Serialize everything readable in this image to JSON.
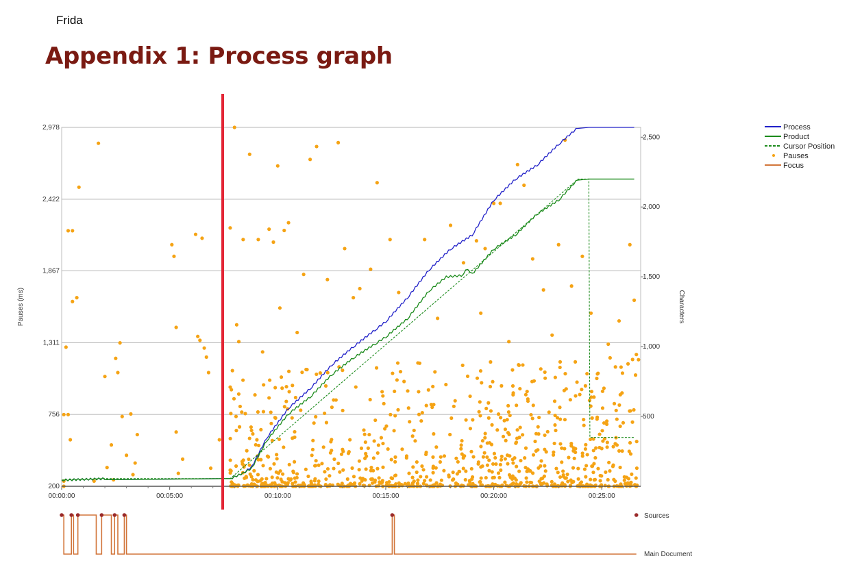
{
  "header": {
    "author": "Frida",
    "title": "Appendix 1: Process graph"
  },
  "colors": {
    "process": "#2020c8",
    "product": "#1a8a1a",
    "cursor": "#1a8a1a",
    "pauses": "#f5a314",
    "focus": "#d2753a",
    "focus_dot": "#9a2a2a",
    "marker": "#e32636",
    "title": "#7a1a12"
  },
  "chart_data": {
    "type": "line",
    "title": "",
    "ylabel_left": "Pauses (ms)",
    "ylabel_right": "Characters",
    "xlabel": "",
    "y_left_ticks": [
      "200",
      "756",
      "1,311",
      "1,867",
      "2,422",
      "2,978"
    ],
    "y_left_range": [
      200,
      2978
    ],
    "y_right_ticks": [
      "500",
      "1,000",
      "1,500",
      "2,000",
      "2,500"
    ],
    "y_right_range": [
      0,
      2570
    ],
    "x_ticks": [
      "00:00:00",
      "00:05:00",
      "00:10:00",
      "00:15:00",
      "00:20:00",
      "00:25:00"
    ],
    "x_range_min": [
      0,
      26.5
    ],
    "grid": true,
    "legend_position": "right",
    "legend": [
      "Process",
      "Product",
      "Cursor Position",
      "Pauses",
      "Focus"
    ],
    "series": [
      {
        "name": "Process",
        "style": "line",
        "x": [
          0,
          2,
          7.8,
          8.4,
          8.8,
          9.5,
          10.5,
          11.5,
          12.5,
          13.5,
          14.5,
          15,
          16,
          17,
          18,
          19,
          20,
          21,
          22,
          23,
          23.9,
          24.4,
          26.5
        ],
        "y": [
          45,
          55,
          55,
          95,
          140,
          350,
          560,
          700,
          870,
          1000,
          1120,
          1180,
          1350,
          1550,
          1700,
          1800,
          2050,
          2200,
          2300,
          2450,
          2570,
          2570,
          2570
        ]
      },
      {
        "name": "Product",
        "style": "line",
        "x": [
          0,
          2,
          7.8,
          8.4,
          8.8,
          9.5,
          10.5,
          11.5,
          12.5,
          13.5,
          14.5,
          15,
          16,
          17,
          17.8,
          18.5,
          18.8,
          19,
          20,
          21,
          22,
          23,
          23.9,
          24.4,
          26.5
        ],
        "y": [
          45,
          55,
          55,
          95,
          130,
          330,
          520,
          640,
          800,
          920,
          1020,
          1070,
          1200,
          1400,
          1500,
          1510,
          1560,
          1520,
          1700,
          1800,
          1950,
          2050,
          2200,
          2200,
          2200
        ]
      },
      {
        "name": "Cursor Position",
        "style": "dashed",
        "x": [
          0,
          2,
          7.8,
          23.9,
          24.4,
          24.45,
          26.5
        ],
        "y": [
          45,
          55,
          55,
          2200,
          2200,
          350,
          350
        ]
      }
    ],
    "pauses_ms": [
      [
        0.1,
        200
      ],
      [
        0.1,
        240
      ],
      [
        0.1,
        755
      ],
      [
        0.3,
        755
      ],
      [
        0.3,
        2178
      ],
      [
        0.5,
        2178
      ],
      [
        0.2,
        1277
      ],
      [
        0.4,
        560
      ],
      [
        0.5,
        1630
      ],
      [
        0.7,
        1660
      ],
      [
        0.8,
        2515
      ],
      [
        1.5,
        240
      ],
      [
        1.7,
        2855
      ],
      [
        2,
        1050
      ],
      [
        2.1,
        345
      ],
      [
        2.3,
        520
      ],
      [
        2.4,
        250
      ],
      [
        2.5,
        1190
      ],
      [
        2.6,
        1080
      ],
      [
        2.7,
        1310
      ],
      [
        2.8,
        740
      ],
      [
        3,
        440
      ],
      [
        3.2,
        760
      ],
      [
        3.3,
        290
      ],
      [
        3.4,
        380
      ],
      [
        3.5,
        600
      ],
      [
        5.1,
        2070
      ],
      [
        5.2,
        1980
      ],
      [
        5.3,
        1430
      ],
      [
        5.3,
        620
      ],
      [
        5.4,
        300
      ],
      [
        5.6,
        410
      ],
      [
        6.2,
        2150
      ],
      [
        6.3,
        1360
      ],
      [
        6.4,
        1330
      ],
      [
        6.5,
        2120
      ],
      [
        6.6,
        1270
      ],
      [
        6.7,
        1200
      ],
      [
        6.8,
        1080
      ],
      [
        6.9,
        340
      ],
      [
        7.3,
        560
      ],
      [
        7.8,
        2200
      ],
      [
        8,
        2980
      ],
      [
        8.1,
        1450
      ],
      [
        8.2,
        1320
      ],
      [
        8.4,
        2110
      ],
      [
        8.7,
        2770
      ],
      [
        9.1,
        2110
      ],
      [
        9.3,
        1240
      ],
      [
        9.6,
        2190
      ],
      [
        9.8,
        2090
      ],
      [
        10,
        2680
      ],
      [
        10.1,
        1580
      ],
      [
        10.3,
        2180
      ],
      [
        10.5,
        2240
      ],
      [
        10.9,
        1390
      ],
      [
        11.2,
        1840
      ],
      [
        11.5,
        2730
      ],
      [
        11.8,
        2830
      ],
      [
        12.3,
        1800
      ],
      [
        12.8,
        2860
      ],
      [
        13.1,
        2040
      ],
      [
        13.5,
        1660
      ],
      [
        13.8,
        1730
      ],
      [
        14.3,
        1880
      ],
      [
        14.6,
        2550
      ],
      [
        15.2,
        2110
      ],
      [
        15.6,
        1700
      ],
      [
        16.8,
        2110
      ],
      [
        17.4,
        1500
      ],
      [
        18,
        2220
      ],
      [
        18.6,
        1930
      ],
      [
        19.2,
        2100
      ],
      [
        19.4,
        1540
      ],
      [
        19.6,
        2040
      ],
      [
        20,
        2390
      ],
      [
        20.3,
        2390
      ],
      [
        20.7,
        1320
      ],
      [
        21.1,
        2690
      ],
      [
        21.4,
        2530
      ],
      [
        21.8,
        1960
      ],
      [
        22.3,
        1720
      ],
      [
        22.7,
        1370
      ],
      [
        23,
        2070
      ],
      [
        23.3,
        2880
      ],
      [
        23.6,
        1750
      ],
      [
        24.1,
        1980
      ],
      [
        24.5,
        1540
      ],
      [
        24.8,
        1070
      ],
      [
        25.3,
        1300
      ],
      [
        25.8,
        1480
      ],
      [
        26.3,
        2070
      ],
      [
        26.6,
        1220
      ],
      [
        26.5,
        1640
      ]
    ],
    "focus": {
      "labels": [
        "Sources",
        "Main Document"
      ],
      "switch_times": [
        0,
        0.1,
        0.45,
        0.55,
        0.75,
        1.6,
        1.85,
        2.3,
        2.45,
        2.6,
        2.9,
        3.0,
        15.3,
        15.4,
        26.6
      ]
    }
  }
}
